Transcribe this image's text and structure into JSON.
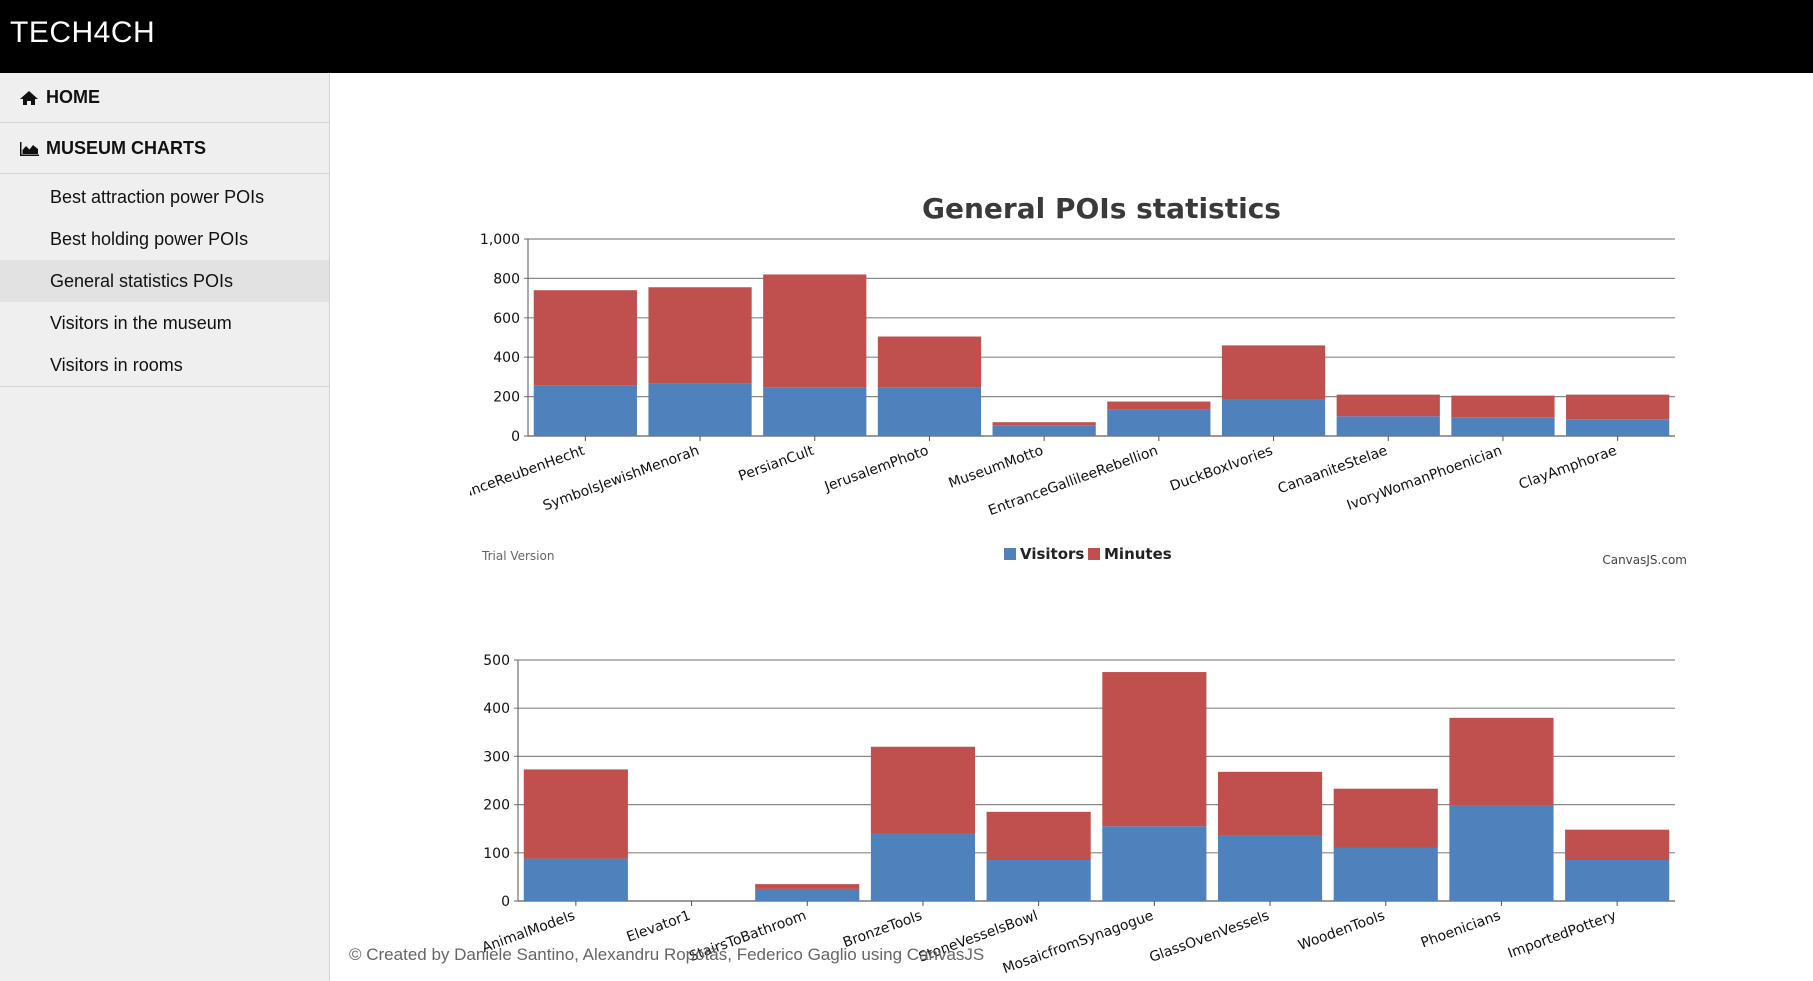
{
  "app": {
    "brand": "TECH4CH"
  },
  "sidebar": {
    "home": {
      "label": "HOME",
      "icon": "home-icon"
    },
    "museum_charts": {
      "label": "MUSEUM CHARTS",
      "icon": "area-chart-icon"
    },
    "items": [
      {
        "label": "Best attraction power POIs",
        "active": false
      },
      {
        "label": "Best holding power POIs",
        "active": false
      },
      {
        "label": "General statistics POIs",
        "active": true
      },
      {
        "label": "Visitors in the museum",
        "active": false
      },
      {
        "label": "Visitors in rooms",
        "active": false
      }
    ]
  },
  "footer": {
    "text": "© Created by Daniele Santino, Alexandru Ropotăs, Federico Gaglio using CanvasJS"
  },
  "colors": {
    "visitors": "#4f81bc",
    "minutes": "#c0504e",
    "grid": "#898989"
  },
  "chart_data": [
    {
      "type": "bar",
      "stacked": true,
      "title": "General POIs statistics",
      "categories": [
        "EntranceReubenHecht",
        "SymbolsJewishMenorah",
        "PersianCult",
        "JerusalemPhoto",
        "MuseumMotto",
        "EntranceGallileeRebellion",
        "DuckBoxIvories",
        "CanaaniteStelae",
        "IvoryWomanPhoenician",
        "ClayAmphorae"
      ],
      "series": [
        {
          "name": "Visitors",
          "values": [
            255,
            265,
            245,
            245,
            55,
            135,
            185,
            100,
            95,
            85
          ]
        },
        {
          "name": "Minutes",
          "values": [
            485,
            490,
            575,
            260,
            15,
            40,
            275,
            110,
            110,
            125
          ]
        }
      ],
      "ylim": [
        0,
        1000
      ],
      "yticks": [
        "0",
        "200",
        "400",
        "600",
        "800",
        "1,000"
      ],
      "legend": "bottom-center",
      "grid": true,
      "trial_label": "Trial Version",
      "credit": "CanvasJS.com"
    },
    {
      "type": "bar",
      "stacked": true,
      "categories": [
        "AnimalModels",
        "Elevator1",
        "StairsToBathroom",
        "BronzeTools",
        "StoneVesselsBowl",
        "MosaicfromSynagogue",
        "GlassOvenVessels",
        "WoodenTools",
        "Phoenicians",
        "ImportedPottery"
      ],
      "series": [
        {
          "name": "Visitors",
          "values": [
            88,
            0,
            25,
            140,
            85,
            155,
            135,
            110,
            198,
            85
          ]
        },
        {
          "name": "Minutes",
          "values": [
            185,
            0,
            10,
            180,
            100,
            320,
            133,
            123,
            182,
            63
          ]
        }
      ],
      "ylim": [
        0,
        500
      ],
      "yticks": [
        "0",
        "100",
        "200",
        "300",
        "400",
        "500"
      ],
      "grid": true
    }
  ]
}
